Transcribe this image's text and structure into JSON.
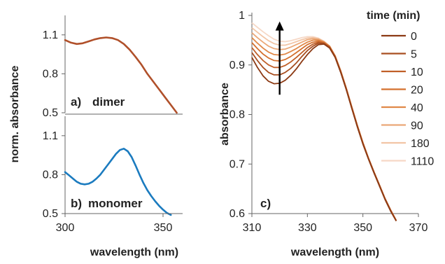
{
  "chart_data": [
    {
      "type": "line",
      "panel_label": "a)",
      "annotation": "dimer",
      "ylabel": "norm. absorbance",
      "xlabel": "",
      "xlim": [
        300,
        360
      ],
      "ylim": [
        0.5,
        1.25
      ],
      "yticks": [
        "1.1",
        "0.8",
        "0.5"
      ],
      "ytick_values": [
        1.1,
        0.8,
        0.5
      ],
      "xticks": [],
      "xtick_values": [],
      "grid": false,
      "series": [
        {
          "color": "#b0502a",
          "x": [
            300,
            303,
            306,
            309,
            312,
            315,
            318,
            321,
            324,
            327,
            330,
            333,
            336,
            339,
            342,
            345,
            348,
            351,
            354,
            357
          ],
          "y": [
            1.06,
            1.04,
            1.03,
            1.035,
            1.05,
            1.065,
            1.075,
            1.08,
            1.075,
            1.06,
            1.03,
            0.985,
            0.93,
            0.87,
            0.8,
            0.74,
            0.68,
            0.62,
            0.56,
            0.5
          ]
        }
      ]
    },
    {
      "type": "line",
      "panel_label": "b)",
      "annotation": "monomer",
      "ylabel": "",
      "xlabel": "wavelength (nm)",
      "xlim": [
        300,
        360
      ],
      "ylim": [
        0.5,
        1.25
      ],
      "yticks": [
        "1.1",
        "0.8",
        "0.5"
      ],
      "ytick_values": [
        1.1,
        0.8,
        0.5
      ],
      "xticks": [
        "300",
        "350"
      ],
      "xtick_values": [
        300,
        350
      ],
      "grid": false,
      "series": [
        {
          "color": "#1b7bbf",
          "x": [
            300,
            302,
            304,
            306,
            308,
            310,
            312,
            314,
            316,
            318,
            320,
            322,
            324,
            326,
            328,
            330,
            332,
            334,
            336,
            338,
            340,
            342,
            344,
            346,
            348,
            350,
            352,
            354
          ],
          "y": [
            0.82,
            0.795,
            0.77,
            0.745,
            0.73,
            0.725,
            0.73,
            0.745,
            0.77,
            0.8,
            0.84,
            0.88,
            0.92,
            0.96,
            0.99,
            1.0,
            0.98,
            0.935,
            0.87,
            0.8,
            0.735,
            0.68,
            0.635,
            0.595,
            0.56,
            0.53,
            0.505,
            0.49
          ]
        }
      ]
    },
    {
      "type": "line",
      "panel_label": "c)",
      "ylabel": "absorbance",
      "xlabel": "wavelength (nm)",
      "xlim": [
        310,
        370
      ],
      "ylim": [
        0.6,
        1.0
      ],
      "yticks": [
        "1",
        "0.9",
        "0.8",
        "0.7",
        "0.6"
      ],
      "ytick_values": [
        1.0,
        0.9,
        0.8,
        0.7,
        0.6
      ],
      "xticks": [
        "310",
        "330",
        "350",
        "370"
      ],
      "xtick_values": [
        310,
        330,
        350,
        370
      ],
      "grid": false,
      "legend_title": "time (min)",
      "legend_position": "top-right",
      "arrow": {
        "x": 320,
        "y_from": 0.84,
        "y_to": 0.985
      },
      "x": [
        310,
        312,
        314,
        316,
        318,
        320,
        322,
        324,
        326,
        328,
        330,
        332,
        334,
        336,
        338,
        340,
        342,
        344,
        346,
        348,
        350,
        352,
        354,
        356,
        358,
        360,
        362
      ],
      "series": [
        {
          "name": "0",
          "color": "#8c3a14",
          "y": [
            0.915,
            0.895,
            0.878,
            0.867,
            0.862,
            0.863,
            0.869,
            0.879,
            0.892,
            0.907,
            0.921,
            0.933,
            0.941,
            0.942,
            0.934,
            0.915,
            0.885,
            0.85,
            0.812,
            0.775,
            0.74,
            0.71,
            0.682,
            0.655,
            0.628,
            0.605,
            0.585
          ]
        },
        {
          "name": "5",
          "color": "#a84e20",
          "y": [
            0.925,
            0.909,
            0.895,
            0.885,
            0.88,
            0.88,
            0.885,
            0.893,
            0.904,
            0.917,
            0.929,
            0.938,
            0.944,
            0.943,
            0.935,
            0.916,
            0.886,
            0.851,
            0.813,
            0.776,
            0.741,
            0.711,
            0.683,
            0.656,
            0.629,
            0.606,
            0.585
          ]
        },
        {
          "name": "10",
          "color": "#c05f28",
          "y": [
            0.935,
            0.921,
            0.909,
            0.9,
            0.895,
            0.895,
            0.899,
            0.906,
            0.915,
            0.925,
            0.935,
            0.942,
            0.946,
            0.944,
            0.936,
            0.917,
            0.887,
            0.852,
            0.814,
            0.777,
            0.742,
            0.712,
            0.684,
            0.657,
            0.63,
            0.607,
            0.586
          ]
        },
        {
          "name": "20",
          "color": "#d4702e",
          "y": [
            0.945,
            0.933,
            0.922,
            0.914,
            0.909,
            0.908,
            0.911,
            0.917,
            0.925,
            0.933,
            0.941,
            0.946,
            0.948,
            0.945,
            0.937,
            0.918,
            0.888,
            0.853,
            0.815,
            0.778,
            0.743,
            0.712,
            0.684,
            0.657,
            0.63,
            0.607,
            0.586
          ]
        },
        {
          "name": "40",
          "color": "#e08848",
          "y": [
            0.955,
            0.944,
            0.934,
            0.926,
            0.921,
            0.92,
            0.922,
            0.927,
            0.933,
            0.94,
            0.946,
            0.95,
            0.95,
            0.946,
            0.938,
            0.918,
            0.888,
            0.853,
            0.815,
            0.778,
            0.743,
            0.712,
            0.684,
            0.657,
            0.63,
            0.607,
            0.586
          ]
        },
        {
          "name": "90",
          "color": "#eba878",
          "y": [
            0.965,
            0.955,
            0.946,
            0.938,
            0.933,
            0.931,
            0.932,
            0.936,
            0.941,
            0.946,
            0.951,
            0.953,
            0.952,
            0.947,
            0.938,
            0.918,
            0.888,
            0.853,
            0.815,
            0.778,
            0.743,
            0.712,
            0.684,
            0.657,
            0.63,
            0.607,
            0.586
          ]
        },
        {
          "name": "180",
          "color": "#f2c5a5",
          "y": [
            0.975,
            0.966,
            0.957,
            0.949,
            0.943,
            0.94,
            0.94,
            0.943,
            0.947,
            0.951,
            0.954,
            0.955,
            0.953,
            0.947,
            0.938,
            0.918,
            0.888,
            0.853,
            0.815,
            0.778,
            0.743,
            0.712,
            0.684,
            0.657,
            0.63,
            0.607,
            0.586
          ]
        },
        {
          "name": "1110",
          "color": "#f6d8c6",
          "y": [
            0.985,
            0.976,
            0.967,
            0.959,
            0.952,
            0.948,
            0.947,
            0.949,
            0.952,
            0.955,
            0.957,
            0.957,
            0.954,
            0.948,
            0.938,
            0.918,
            0.888,
            0.853,
            0.815,
            0.778,
            0.743,
            0.712,
            0.684,
            0.657,
            0.63,
            0.607,
            0.586
          ]
        }
      ]
    }
  ]
}
